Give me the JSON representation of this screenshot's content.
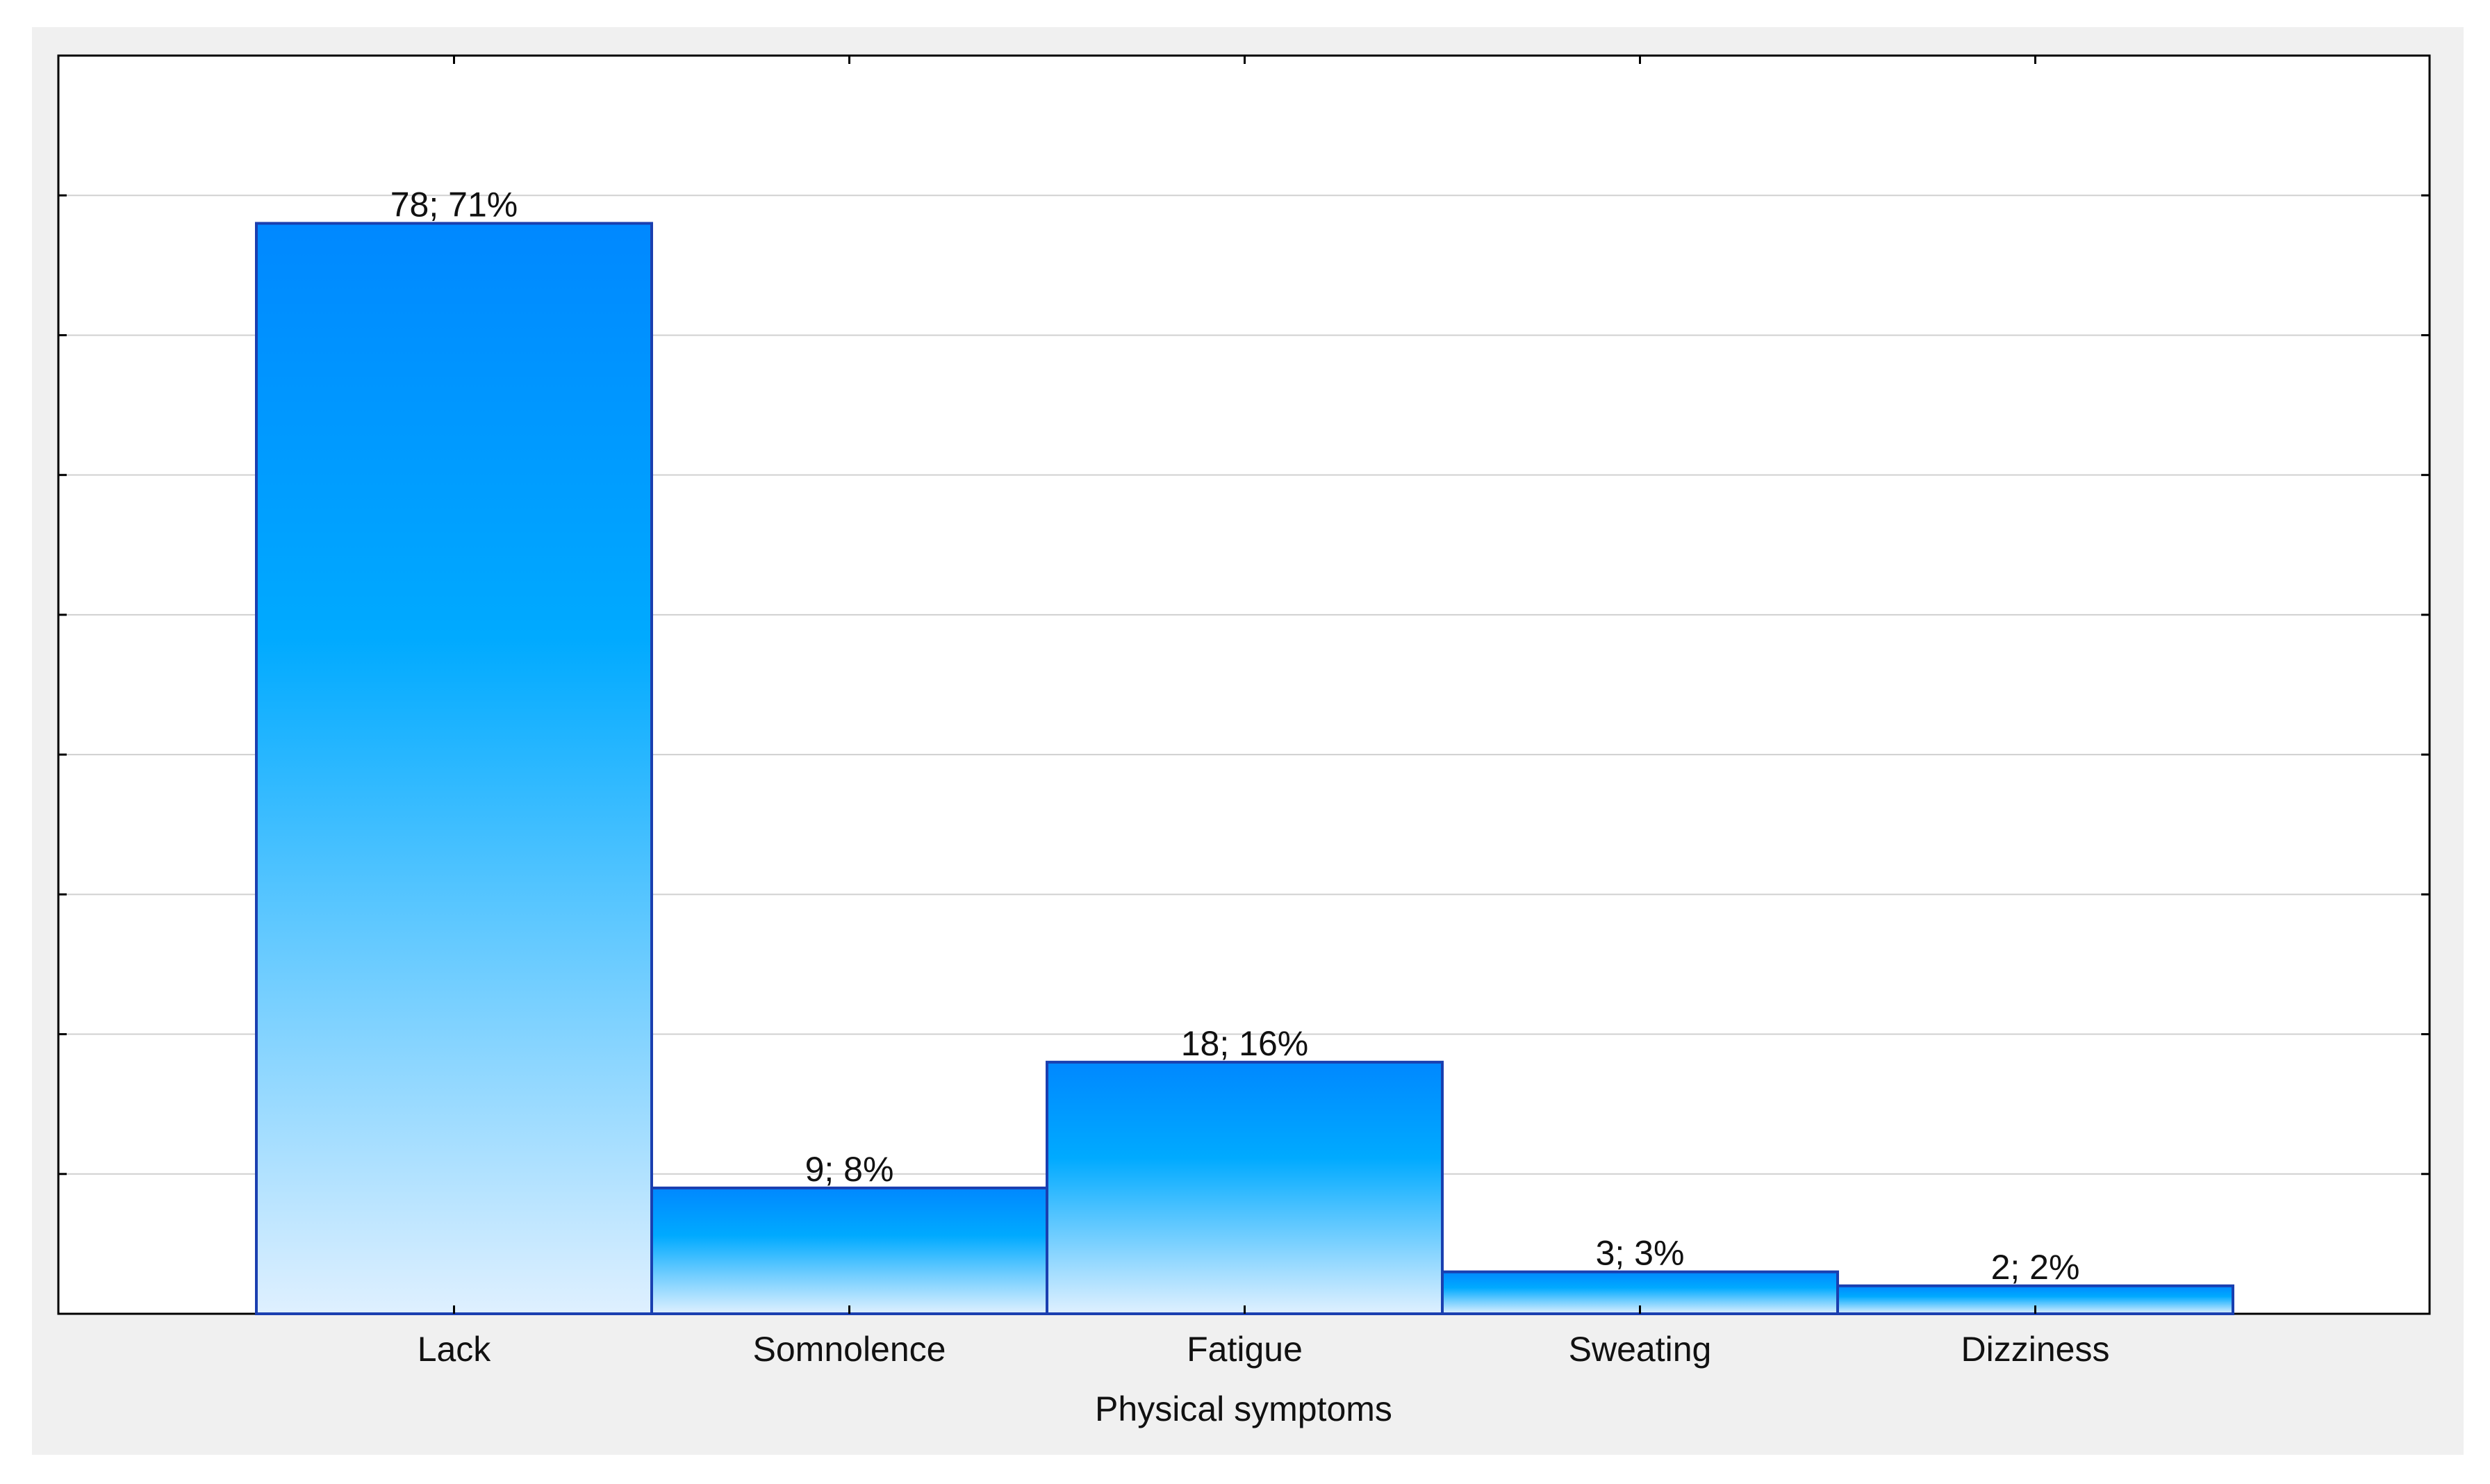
{
  "chart_data": {
    "type": "bar",
    "title": "",
    "xlabel": "Physical symptoms",
    "ylabel": "",
    "categories": [
      "Lack",
      "Somnolence",
      "Fatigue",
      "Sweating",
      "Dizziness"
    ],
    "values": [
      78,
      9,
      18,
      3,
      2
    ],
    "data_labels": [
      "78; 71%",
      "9; 8%",
      "18; 16%",
      "3; 3%",
      "2; 2%"
    ],
    "ylim": [
      0,
      90
    ],
    "y_gridlines": [
      10,
      20,
      30,
      40,
      50,
      60,
      70,
      80
    ],
    "grid": true,
    "legend": "none",
    "bar_border_color": "#1a3fb0",
    "bar_gradient": [
      "#0088ff",
      "#00aaff",
      "#dff0ff"
    ],
    "frame_background": "#f0f0f0"
  }
}
